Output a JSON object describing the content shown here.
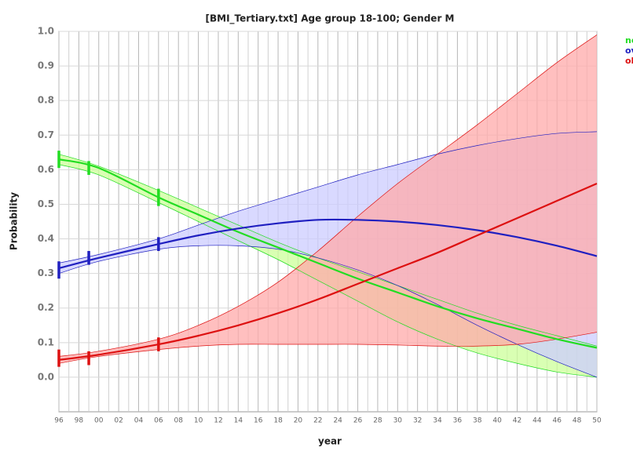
{
  "chart_data": {
    "type": "band-line",
    "title": "[BMI_Tertiary.txt] Age group 18-100; Gender M",
    "x_label": "year",
    "y_label": "Probability",
    "x": [
      1996,
      2000,
      2006,
      2010,
      2014,
      2018,
      2022,
      2026,
      2030,
      2034,
      2038,
      2042,
      2046,
      2050
    ],
    "xlim": [
      1996,
      2050
    ],
    "xticks": [
      {
        "value": 1996,
        "label": "96"
      },
      {
        "value": 1998,
        "label": "98"
      },
      {
        "value": 2000,
        "label": "00"
      },
      {
        "value": 2002,
        "label": "02"
      },
      {
        "value": 2004,
        "label": "04"
      },
      {
        "value": 2006,
        "label": "06"
      },
      {
        "value": 2008,
        "label": "08"
      },
      {
        "value": 2010,
        "label": "10"
      },
      {
        "value": 2012,
        "label": "12"
      },
      {
        "value": 2014,
        "label": "14"
      },
      {
        "value": 2016,
        "label": "16"
      },
      {
        "value": 2018,
        "label": "18"
      },
      {
        "value": 2020,
        "label": "20"
      },
      {
        "value": 2022,
        "label": "22"
      },
      {
        "value": 2024,
        "label": "24"
      },
      {
        "value": 2026,
        "label": "26"
      },
      {
        "value": 2028,
        "label": "28"
      },
      {
        "value": 2030,
        "label": "30"
      },
      {
        "value": 2032,
        "label": "32"
      },
      {
        "value": 2034,
        "label": "34"
      },
      {
        "value": 2036,
        "label": "36"
      },
      {
        "value": 2038,
        "label": "38"
      },
      {
        "value": 2040,
        "label": "40"
      },
      {
        "value": 2042,
        "label": "42"
      },
      {
        "value": 2044,
        "label": "44"
      },
      {
        "value": 2046,
        "label": "46"
      },
      {
        "value": 2048,
        "label": "48"
      },
      {
        "value": 2050,
        "label": "50"
      }
    ],
    "ylim": [
      -0.1,
      1.0
    ],
    "yticks": [
      {
        "value": 0,
        "label": "0.0"
      },
      0.1,
      0.2,
      0.3,
      0.4,
      0.5,
      0.6,
      0.7,
      0.8,
      0.9,
      {
        "value": 1,
        "label": "1.0"
      }
    ],
    "grid": true,
    "observed_x": [
      1996,
      1999,
      2006
    ],
    "series": [
      {
        "name": "no",
        "color": "#22dd22",
        "band_color": "#ccff99",
        "values": [
          0.63,
          0.605,
          0.52,
          0.47,
          0.42,
          0.375,
          0.33,
          0.285,
          0.245,
          0.205,
          0.17,
          0.14,
          0.11,
          0.085
        ],
        "upper": [
          0.645,
          0.61,
          0.54,
          0.49,
          0.44,
          0.39,
          0.345,
          0.305,
          0.265,
          0.225,
          0.185,
          0.15,
          0.12,
          0.09
        ],
        "lower": [
          0.615,
          0.585,
          0.505,
          0.45,
          0.395,
          0.34,
          0.28,
          0.22,
          0.16,
          0.11,
          0.07,
          0.04,
          0.015,
          0.0
        ],
        "observed": [
          0.63,
          0.605,
          0.52
        ],
        "errors": [
          0.025,
          0.02,
          0.025
        ]
      },
      {
        "name": "ov",
        "color": "#2020c0",
        "band_color": "#ccccff",
        "values": [
          0.315,
          0.345,
          0.385,
          0.41,
          0.43,
          0.445,
          0.455,
          0.455,
          0.45,
          0.44,
          0.425,
          0.405,
          0.38,
          0.35
        ],
        "upper": [
          0.33,
          0.355,
          0.4,
          0.44,
          0.48,
          0.515,
          0.55,
          0.585,
          0.615,
          0.645,
          0.67,
          0.69,
          0.705,
          0.71
        ],
        "lower": [
          0.3,
          0.335,
          0.37,
          0.38,
          0.38,
          0.37,
          0.345,
          0.31,
          0.265,
          0.21,
          0.15,
          0.095,
          0.045,
          0.0
        ],
        "observed": [
          0.31,
          0.345,
          0.385
        ],
        "errors": [
          0.025,
          0.02,
          0.02
        ]
      },
      {
        "name": "ob",
        "color": "#dd1111",
        "band_color": "#ffaaaa",
        "values": [
          0.05,
          0.065,
          0.095,
          0.12,
          0.15,
          0.185,
          0.225,
          0.27,
          0.315,
          0.36,
          0.41,
          0.46,
          0.51,
          0.56
        ],
        "upper": [
          0.06,
          0.075,
          0.11,
          0.15,
          0.205,
          0.275,
          0.365,
          0.465,
          0.56,
          0.645,
          0.73,
          0.82,
          0.91,
          0.99
        ],
        "lower": [
          0.04,
          0.06,
          0.08,
          0.09,
          0.095,
          0.095,
          0.095,
          0.095,
          0.093,
          0.09,
          0.09,
          0.095,
          0.11,
          0.13
        ],
        "observed": [
          0.055,
          0.055,
          0.095
        ],
        "errors": [
          0.025,
          0.02,
          0.02
        ]
      }
    ]
  }
}
